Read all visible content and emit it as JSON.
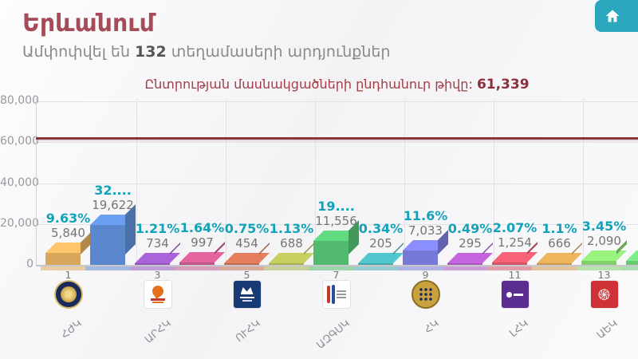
{
  "header": {
    "title": "Երևանում",
    "subtitle": {
      "prefix": "Ամփոփվել են ",
      "count": "132",
      "suffix": " տեղամասերի արդյունքներ"
    }
  },
  "chart_data": {
    "type": "bar",
    "title": "Ընտրության մասնակցածների ընդհանուր թիվը:",
    "total_value": "61,339",
    "reference_line_value": 61339,
    "ylim": [
      0,
      80000
    ],
    "ytick_values": [
      0,
      20000,
      40000,
      60000,
      80000
    ],
    "ytick_labels": [
      "0",
      "20,000",
      "40,000",
      "60,000",
      "80,000"
    ],
    "grid": true,
    "legend": "none",
    "bars": [
      {
        "ballot_number": "1",
        "abbr": "ՀԺԿ",
        "value": 5840,
        "pct_label": "9.63%",
        "votes_label": "5,840",
        "color": "#d9a75c",
        "logo": "navy-gold-medal"
      },
      {
        "ballot_number": "",
        "abbr": "",
        "value": 19622,
        "pct_label": "32....",
        "votes_label": "19,622",
        "color": "#5b87cc",
        "logo": ""
      },
      {
        "ballot_number": "3",
        "abbr": "ԱՐՀԿ",
        "value": 734,
        "pct_label": "1.21%",
        "votes_label": "734",
        "color": "#9154b8",
        "logo": "white-orange-swoosh"
      },
      {
        "ballot_number": "",
        "abbr": "",
        "value": 997,
        "pct_label": "1.64%",
        "votes_label": "997",
        "color": "#c15587",
        "logo": ""
      },
      {
        "ballot_number": "5",
        "abbr": "ՈՒՀԿ",
        "value": 454,
        "pct_label": "0.75%",
        "votes_label": "454",
        "color": "#c26b4e",
        "logo": "navy-square"
      },
      {
        "ballot_number": "",
        "abbr": "",
        "value": 688,
        "pct_label": "1.13%",
        "votes_label": "688",
        "color": "#a9b050",
        "logo": ""
      },
      {
        "ballot_number": "7",
        "abbr": "ԱԶԳՍԿ",
        "value": 11556,
        "pct_label": "19....",
        "votes_label": "11,556",
        "color": "#52ba6e",
        "logo": "stripe-book"
      },
      {
        "ballot_number": "",
        "abbr": "",
        "value": 205,
        "pct_label": "0.34%",
        "votes_label": "205",
        "color": "#43a9ae",
        "logo": ""
      },
      {
        "ballot_number": "9",
        "abbr": "ՀԿ",
        "value": 7033,
        "pct_label": "11.6%",
        "votes_label": "7,033",
        "color": "#7679d6",
        "logo": "gold-medallion"
      },
      {
        "ballot_number": "",
        "abbr": "",
        "value": 295,
        "pct_label": "0.49%",
        "votes_label": "295",
        "color": "#a855bd",
        "logo": ""
      },
      {
        "ballot_number": "11",
        "abbr": "ԼՀԿ",
        "value": 1254,
        "pct_label": "2.07%",
        "votes_label": "1,254",
        "color": "#d25465",
        "logo": "purple-square"
      },
      {
        "ballot_number": "",
        "abbr": "",
        "value": 666,
        "pct_label": "1.1%",
        "votes_label": "666",
        "color": "#c99a4e",
        "logo": ""
      },
      {
        "ballot_number": "13",
        "abbr": "ԱԵԿ",
        "value": 2090,
        "pct_label": "3.45%",
        "votes_label": "2,090",
        "color": "#83ce6c",
        "logo": "red-square"
      },
      {
        "ballot_number": "",
        "abbr": "",
        "value": 2000,
        "pct_label": "",
        "votes_label": "",
        "color": "#6cc973",
        "logo": ""
      }
    ],
    "colors": {
      "pct_text": "#12a3b8",
      "votes_text": "#757575",
      "reference_line": "#8e3038",
      "accent_teal": "#2ba7bd",
      "title_maroon": "#a64c59"
    }
  }
}
